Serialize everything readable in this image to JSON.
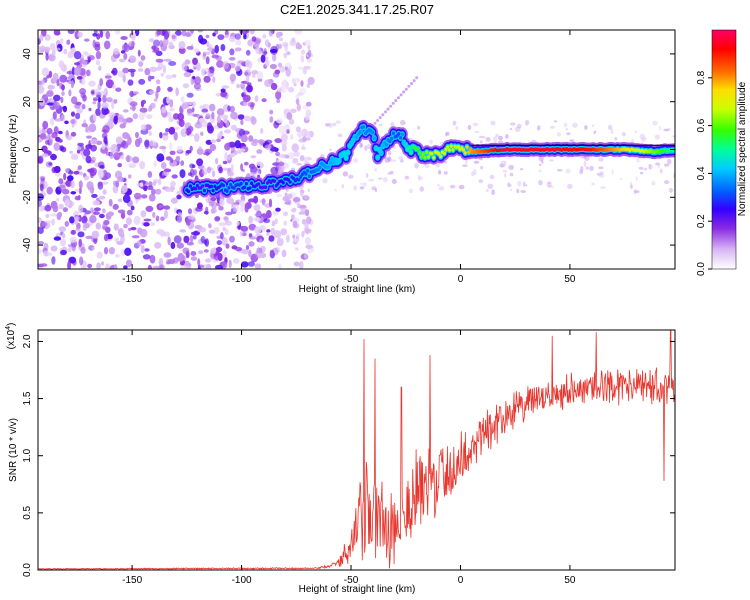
{
  "title": "C2E1.2025.341.17.25.R07",
  "chart_data": [
    {
      "type": "heatmap",
      "xlabel": "Height of straight line (km)",
      "ylabel": "Frequency (Hz)",
      "xlim": [
        -193,
        98
      ],
      "ylim": [
        -50,
        50
      ],
      "xticks": [
        -150,
        -100,
        -50,
        0,
        50
      ],
      "yticks": [
        -40,
        -20,
        0,
        20,
        40
      ],
      "colorbar": {
        "label": "Normalized spectral amplitude",
        "range": [
          0,
          1
        ],
        "ticks": [
          "0.0",
          "0.2",
          "0.4",
          "0.6",
          "0.8"
        ],
        "colors": [
          "#ffffff",
          "#d9b8f5",
          "#8a2be2",
          "#3300ff",
          "#0066ff",
          "#00ccff",
          "#00ff99",
          "#33ff00",
          "#ccff00",
          "#ffdd00",
          "#ff6600",
          "#ff0000",
          "#ff0066"
        ]
      },
      "noise_region_x": [
        -193,
        -68
      ],
      "ridge": [
        {
          "x": -125,
          "f": -17,
          "a": 0.25
        },
        {
          "x": -118,
          "f": -16,
          "a": 0.22
        },
        {
          "x": -105,
          "f": -16,
          "a": 0.3
        },
        {
          "x": -100,
          "f": -15,
          "a": 0.28
        },
        {
          "x": -90,
          "f": -15,
          "a": 0.22
        },
        {
          "x": -80,
          "f": -13,
          "a": 0.25
        },
        {
          "x": -72,
          "f": -11,
          "a": 0.3
        },
        {
          "x": -65,
          "f": -8,
          "a": 0.35
        },
        {
          "x": -58,
          "f": -5,
          "a": 0.4
        },
        {
          "x": -52,
          "f": -2,
          "a": 0.45
        },
        {
          "x": -48,
          "f": 5,
          "a": 0.4
        },
        {
          "x": -45,
          "f": 9,
          "a": 0.35
        },
        {
          "x": -40,
          "f": 6,
          "a": 0.35
        },
        {
          "x": -38,
          "f": -3,
          "a": 0.45
        },
        {
          "x": -33,
          "f": 4,
          "a": 0.35
        },
        {
          "x": -28,
          "f": 7,
          "a": 0.3
        },
        {
          "x": -24,
          "f": 1,
          "a": 0.5
        },
        {
          "x": -18,
          "f": -2,
          "a": 0.6
        },
        {
          "x": -10,
          "f": -2,
          "a": 0.7
        },
        {
          "x": -2,
          "f": 1,
          "a": 0.65
        },
        {
          "x": 5,
          "f": -1,
          "a": 0.8
        },
        {
          "x": 20,
          "f": 0,
          "a": 0.95
        },
        {
          "x": 40,
          "f": 0,
          "a": 0.95
        },
        {
          "x": 60,
          "f": 0,
          "a": 0.9
        },
        {
          "x": 75,
          "f": 0,
          "a": 0.75
        },
        {
          "x": 90,
          "f": -1,
          "a": 0.6
        },
        {
          "x": 98,
          "f": 0,
          "a": 0.5
        }
      ],
      "streak": {
        "x": [
          -45,
          -20
        ],
        "f": [
          5,
          30
        ]
      }
    },
    {
      "type": "line",
      "xlabel": "Height of straight line (km)",
      "ylabel": "SNR (10 * v/v)",
      "multiplier": "(x10",
      "multiplier_exp": "4",
      "xlim": [
        -193,
        98
      ],
      "ylim": [
        0,
        2.1
      ],
      "xticks": [
        -150,
        -100,
        -50,
        0,
        50
      ],
      "yticks": [
        "0.0",
        "0.5",
        "1.0",
        "1.5",
        "2.0"
      ],
      "color": "#e8352d",
      "envelope": {
        "x": [
          -193,
          -70,
          -60,
          -55,
          -50,
          -46,
          -44,
          -40,
          -35,
          -30,
          -20,
          -10,
          0,
          10,
          20,
          30,
          40,
          50,
          60,
          70,
          80,
          90,
          98
        ],
        "mean": [
          0.01,
          0.015,
          0.03,
          0.08,
          0.2,
          0.45,
          0.5,
          0.45,
          0.4,
          0.42,
          0.65,
          0.8,
          0.95,
          1.2,
          1.35,
          1.45,
          1.52,
          1.58,
          1.6,
          1.62,
          1.6,
          1.6,
          1.58
        ],
        "spread": [
          0.004,
          0.006,
          0.015,
          0.05,
          0.15,
          0.35,
          0.5,
          0.5,
          0.45,
          0.45,
          0.4,
          0.35,
          0.25,
          0.22,
          0.18,
          0.15,
          0.15,
          0.15,
          0.16,
          0.16,
          0.16,
          0.17,
          0.18
        ]
      },
      "spikes": [
        {
          "x": -44,
          "y": 2.02
        },
        {
          "x": -39,
          "y": 1.85
        },
        {
          "x": -27,
          "y": 1.6
        },
        {
          "x": -14,
          "y": 1.88
        },
        {
          "x": 42,
          "y": 2.05
        },
        {
          "x": 62,
          "y": 2.08
        },
        {
          "x": 93,
          "y": 0.78
        },
        {
          "x": 96,
          "y": 2.1
        }
      ]
    }
  ]
}
